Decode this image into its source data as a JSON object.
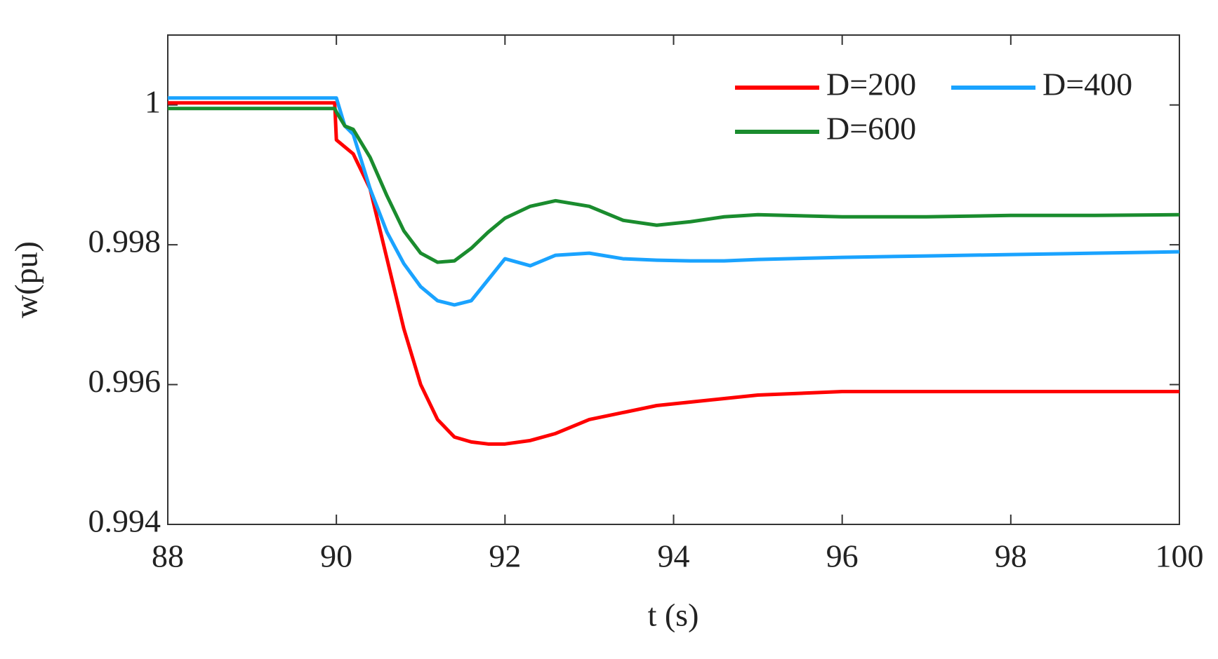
{
  "chart_data": {
    "type": "line",
    "xlabel": "t (s)",
    "ylabel": "w(pu)",
    "x": [
      88,
      89,
      89.98,
      90,
      90.1,
      90.2,
      90.4,
      90.6,
      90.8,
      91,
      91.2,
      91.4,
      91.6,
      91.8,
      92,
      92.3,
      92.6,
      93,
      93.4,
      93.8,
      94.2,
      94.6,
      95,
      96,
      97,
      98,
      99,
      100
    ],
    "series": [
      {
        "name": "D=200",
        "color": "#ff0000",
        "values": [
          1.00003,
          1.00003,
          1.00003,
          0.9995,
          0.9994,
          0.9993,
          0.9988,
          0.9978,
          0.9968,
          0.996,
          0.9955,
          0.99525,
          0.99518,
          0.99515,
          0.99515,
          0.9952,
          0.9953,
          0.9955,
          0.9956,
          0.9957,
          0.99575,
          0.9958,
          0.99585,
          0.9959,
          0.9959,
          0.9959,
          0.9959,
          0.9959
        ]
      },
      {
        "name": "D=400",
        "color": "#1aa3ff",
        "values": [
          1.0001,
          1.0001,
          1.0001,
          1.0001,
          0.9997,
          0.99958,
          0.9988,
          0.99818,
          0.99773,
          0.9974,
          0.9972,
          0.99714,
          0.9972,
          0.9975,
          0.9978,
          0.9977,
          0.99785,
          0.99788,
          0.9978,
          0.99778,
          0.99777,
          0.99777,
          0.99779,
          0.99782,
          0.99784,
          0.99786,
          0.99788,
          0.9979
        ]
      },
      {
        "name": "D=600",
        "color": "#1a8c2e",
        "values": [
          0.99995,
          0.99995,
          0.99995,
          0.9999,
          0.9997,
          0.99965,
          0.99925,
          0.9987,
          0.9982,
          0.99788,
          0.99775,
          0.99777,
          0.99795,
          0.99818,
          0.99838,
          0.99855,
          0.99863,
          0.99855,
          0.99835,
          0.99828,
          0.99833,
          0.9984,
          0.99843,
          0.9984,
          0.9984,
          0.99842,
          0.99842,
          0.99843
        ]
      }
    ],
    "xlim": [
      88,
      100
    ],
    "xticks": [
      88,
      90,
      92,
      94,
      96,
      98,
      100
    ],
    "ylim": [
      0.994,
      1.001
    ],
    "yticks": [
      0.994,
      0.996,
      0.998,
      1
    ],
    "grid": false,
    "legend": "upper right"
  }
}
